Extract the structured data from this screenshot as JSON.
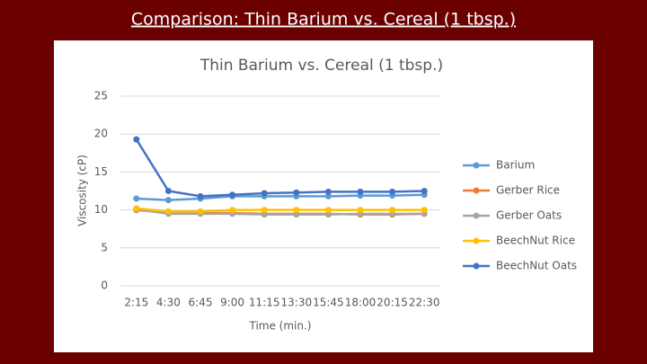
{
  "slide_title": "Comparison: Thin Barium vs. Cereal (1 tbsp.)",
  "chart_data": {
    "type": "line",
    "title": "Thin Barium vs. Cereal (1 tbsp.)",
    "x_label": "Time (min.)",
    "y_label": "Viscosity (cP)",
    "categories": [
      "2:15",
      "4:30",
      "6:45",
      "9:00",
      "11:15",
      "13:30",
      "15:45",
      "18:00",
      "20:15",
      "22:30"
    ],
    "series": [
      {
        "name": "Barium",
        "color": "#5b9bd5",
        "values": [
          11.5,
          11.3,
          11.5,
          11.8,
          11.8,
          11.8,
          11.8,
          11.9,
          11.9,
          12.0
        ]
      },
      {
        "name": "Gerber Rice",
        "color": "#ed7d31",
        "values": [
          10.0,
          9.6,
          9.6,
          9.6,
          9.5,
          9.5,
          9.5,
          9.4,
          9.4,
          9.5
        ]
      },
      {
        "name": "Gerber Oats",
        "color": "#a5a5a5",
        "values": [
          10.1,
          9.5,
          9.5,
          9.5,
          9.4,
          9.4,
          9.4,
          9.5,
          9.5,
          9.5
        ]
      },
      {
        "name": "BeechNut Rice",
        "color": "#ffc000",
        "values": [
          10.2,
          9.8,
          9.8,
          10.0,
          10.0,
          10.0,
          10.0,
          10.0,
          10.0,
          10.0
        ]
      },
      {
        "name": "BeechNut Oats",
        "color": "#4472c4",
        "values": [
          19.3,
          12.5,
          11.8,
          12.0,
          12.2,
          12.3,
          12.4,
          12.4,
          12.4,
          12.5
        ]
      }
    ],
    "ylim": [
      0,
      25
    ],
    "yticks": [
      0,
      5,
      10,
      15,
      20,
      25
    ],
    "grid": true,
    "legend": "right"
  }
}
